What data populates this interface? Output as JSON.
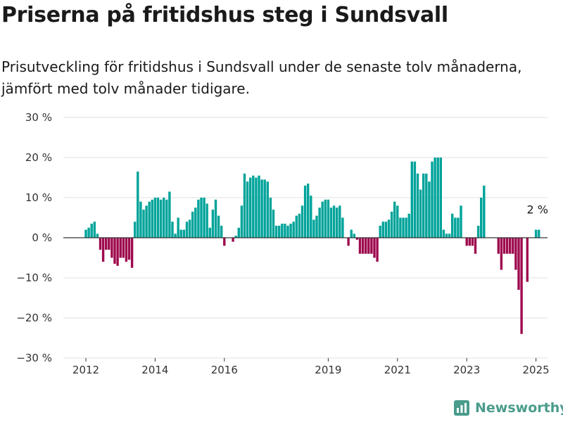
{
  "title": "Priserna på fritidshus steg i Sundsvall",
  "subtitle": "Prisutveckling för fritidshus i Sundsvall under de senaste tolv månaderna, jämfört med tolv månader tidigare.",
  "brand": "Newsworthy",
  "colors": {
    "positive": "#00a39a",
    "negative": "#9e0a4e",
    "grid": "#e2e2e2",
    "zero": "#333333"
  },
  "chart_data": {
    "type": "bar",
    "unit": "%",
    "ylim": [
      -30,
      30
    ],
    "yticks": [
      30,
      20,
      10,
      0,
      -10,
      -20,
      -30
    ],
    "ytick_labels": [
      "30 %",
      "20 %",
      "10 %",
      "0 %",
      "−10 %",
      "−20 %",
      "−30 %"
    ],
    "xtick_labels": [
      "2012",
      "2014",
      "2016",
      "2019",
      "2021",
      "2023",
      "2025"
    ],
    "xtick_dates": [
      "2012-01",
      "2014-01",
      "2016-01",
      "2019-01",
      "2021-01",
      "2023-01",
      "2025-01"
    ],
    "grid": true,
    "annotation": "2 %",
    "series": [
      {
        "dates": [
          "2012-01",
          "2012-02",
          "2012-03",
          "2012-04",
          "2012-05",
          "2012-06",
          "2012-07",
          "2012-08",
          "2012-09",
          "2012-10",
          "2012-11",
          "2012-12",
          "2013-01",
          "2013-02",
          "2013-03",
          "2013-04",
          "2013-05",
          "2013-06",
          "2013-07",
          "2013-08",
          "2013-09",
          "2013-10",
          "2013-11",
          "2013-12",
          "2014-01",
          "2014-02",
          "2014-03",
          "2014-04",
          "2014-05",
          "2014-06",
          "2014-07",
          "2014-08",
          "2014-09",
          "2014-10",
          "2014-11",
          "2014-12",
          "2015-01",
          "2015-02",
          "2015-03",
          "2015-04",
          "2015-05",
          "2015-06",
          "2015-07",
          "2015-08",
          "2015-09",
          "2015-10",
          "2015-11",
          "2015-12",
          "2016-01",
          "2016-02",
          "2016-03",
          "2016-04",
          "2016-05",
          "2016-06",
          "2016-07",
          "2016-08",
          "2016-09",
          "2016-10",
          "2016-11",
          "2016-12",
          "2017-01",
          "2017-02",
          "2017-03",
          "2017-04",
          "2017-05",
          "2017-06",
          "2017-07",
          "2017-08",
          "2017-09",
          "2017-10",
          "2017-11",
          "2017-12",
          "2018-01",
          "2018-02",
          "2018-03",
          "2018-04",
          "2018-05",
          "2018-06",
          "2018-07",
          "2018-08",
          "2018-09",
          "2018-10",
          "2018-11",
          "2018-12",
          "2019-01",
          "2019-02",
          "2019-03",
          "2019-04",
          "2019-05",
          "2019-06",
          "2019-07",
          "2019-08",
          "2019-09",
          "2019-10",
          "2019-11",
          "2019-12",
          "2020-01",
          "2020-02",
          "2020-03",
          "2020-04",
          "2020-05",
          "2020-06",
          "2020-07",
          "2020-08",
          "2020-09",
          "2020-10",
          "2020-11",
          "2020-12",
          "2021-01",
          "2021-02",
          "2021-03",
          "2021-04",
          "2021-05",
          "2021-06",
          "2021-07",
          "2021-08",
          "2021-09",
          "2021-10",
          "2021-11",
          "2021-12",
          "2022-01",
          "2022-02",
          "2022-03",
          "2022-04",
          "2022-05",
          "2022-06",
          "2022-07",
          "2022-08",
          "2022-09",
          "2022-10",
          "2022-11",
          "2022-12",
          "2023-01",
          "2023-02",
          "2023-03",
          "2023-04",
          "2023-05",
          "2023-06",
          "2023-07",
          "2023-08",
          "2023-09",
          "2023-10",
          "2023-11",
          "2023-12",
          "2024-01",
          "2024-02",
          "2024-03",
          "2024-04",
          "2024-05",
          "2024-06",
          "2024-07",
          "2024-08",
          "2024-09",
          "2024-10",
          "2024-11",
          "2024-12",
          "2025-01",
          "2025-02"
        ],
        "values": [
          2,
          2.5,
          3.5,
          4,
          1,
          -3,
          -6,
          -3,
          -3,
          -5,
          -6.5,
          -7,
          -5,
          -5,
          -6,
          -5.5,
          -7.5,
          4,
          16.5,
          9,
          7,
          8,
          9,
          9.5,
          10,
          10,
          9.5,
          10,
          9.5,
          11.5,
          4,
          1,
          5,
          2,
          2,
          4,
          4.5,
          6.5,
          7.5,
          9.5,
          10,
          10,
          8.5,
          2.5,
          7,
          9.5,
          5.5,
          3,
          -2,
          0,
          0,
          -1,
          0.5,
          2.5,
          8,
          16,
          14,
          15,
          15.5,
          15,
          15.5,
          14.5,
          14.5,
          14,
          10,
          7,
          3,
          3,
          3.5,
          3.5,
          3,
          3.5,
          4,
          5.5,
          6,
          8,
          13,
          13.5,
          10.5,
          4.5,
          5.5,
          7.5,
          9,
          9.5,
          9.5,
          7.5,
          8,
          7.5,
          8,
          5,
          0,
          -2,
          2,
          1,
          -0.5,
          -4,
          -4,
          -4,
          -4,
          -4,
          -5,
          -6,
          3,
          4,
          4,
          4.5,
          6.5,
          9,
          8,
          5,
          5,
          5,
          6,
          19,
          19,
          16,
          12,
          16,
          16,
          14,
          19,
          20,
          20,
          20,
          2,
          1,
          1,
          6,
          5,
          5,
          8,
          0,
          -2,
          -2,
          -2,
          -4,
          3,
          10,
          13,
          0,
          0,
          0,
          0,
          -4,
          -8,
          -4,
          -4,
          -4,
          -4,
          -8,
          -13,
          -24,
          0,
          -11,
          0,
          0,
          2,
          2
        ]
      }
    ]
  }
}
